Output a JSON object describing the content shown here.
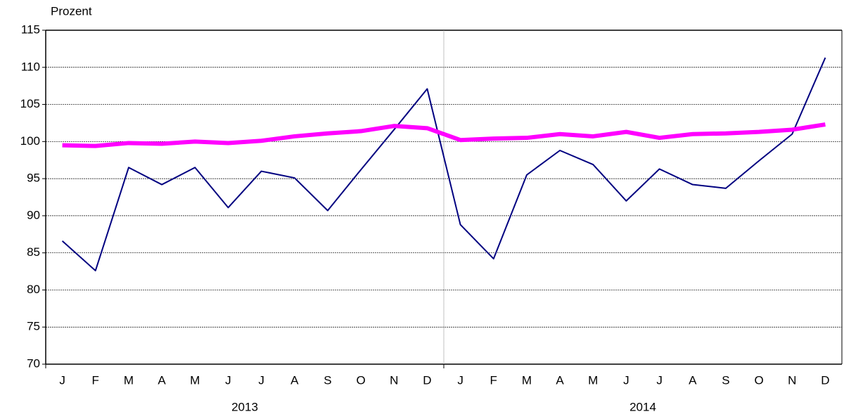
{
  "chart_data": {
    "type": "line",
    "y_label": "Prozent",
    "categories": [
      "J",
      "F",
      "M",
      "A",
      "M",
      "J",
      "J",
      "A",
      "S",
      "O",
      "N",
      "D",
      "J",
      "F",
      "M",
      "A",
      "M",
      "J",
      "J",
      "A",
      "S",
      "O",
      "N",
      "D"
    ],
    "x_groups": [
      "2013",
      "2014"
    ],
    "series": [
      {
        "color": "#000080",
        "width": 2,
        "values": [
          86.6,
          82.6,
          96.5,
          94.2,
          96.5,
          91.1,
          96.0,
          95.1,
          90.7,
          96.2,
          101.6,
          107.1,
          88.8,
          84.2,
          95.5,
          98.8,
          96.9,
          92.0,
          96.3,
          94.2,
          93.7,
          97.4,
          101.0,
          111.3
        ]
      },
      {
        "color": "#ff00ff",
        "width": 6,
        "values": [
          99.5,
          99.4,
          99.8,
          99.7,
          100.0,
          99.8,
          100.1,
          100.7,
          101.1,
          101.4,
          102.1,
          101.8,
          100.2,
          100.4,
          100.5,
          101.0,
          100.7,
          101.3,
          100.5,
          101.0,
          101.1,
          101.3,
          101.6,
          102.3
        ]
      }
    ],
    "ylim": [
      70,
      115
    ],
    "yticks": [
      70,
      75,
      80,
      85,
      90,
      95,
      100,
      105,
      110,
      115
    ],
    "grid": true
  }
}
